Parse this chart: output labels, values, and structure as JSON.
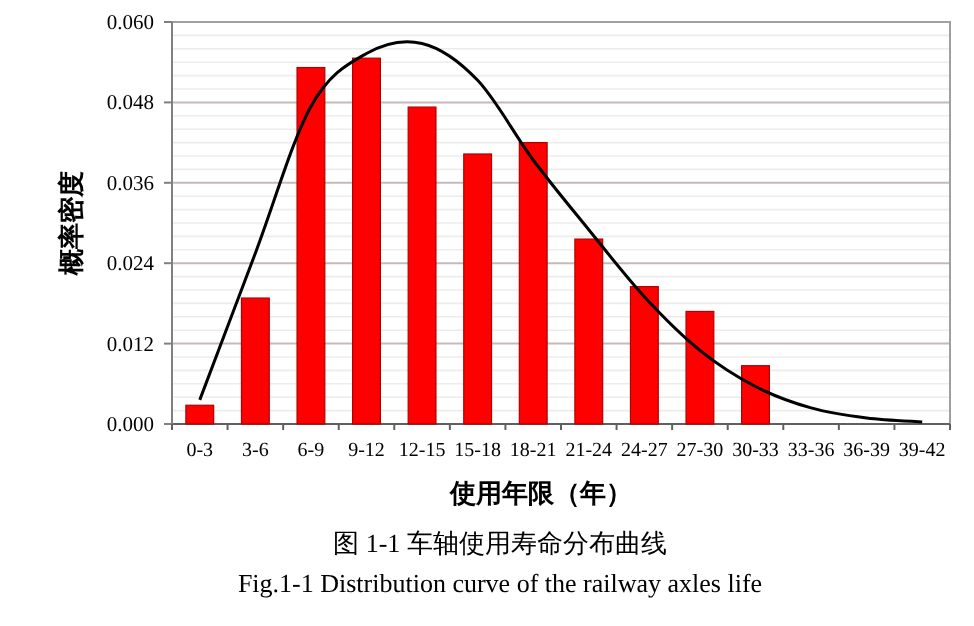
{
  "chart_data": {
    "type": "bar",
    "xlabel": "使用年限（年）",
    "ylabel": "概率密度",
    "categories": [
      "0-3",
      "3-6",
      "6-9",
      "9-12",
      "12-15",
      "15-18",
      "18-21",
      "21-24",
      "24-27",
      "27-30",
      "30-33",
      "33-36",
      "36-39",
      "39-42"
    ],
    "series": [
      {
        "color": "#ff0000",
        "values": [
          0.0028,
          0.0188,
          0.0532,
          0.0546,
          0.0473,
          0.0403,
          0.042,
          0.0276,
          0.0205,
          0.0168,
          0.0087,
          null,
          null,
          null
        ]
      },
      {
        "type": "line",
        "color": "#000000",
        "values": [
          0.0036,
          0.0255,
          0.0474,
          0.0553,
          0.0568,
          0.0513,
          0.0394,
          0.029,
          0.019,
          0.011,
          0.0056,
          0.0024,
          0.0009,
          0.0003
        ]
      }
    ],
    "ylim": [
      0,
      0.06
    ],
    "yticks": [
      {
        "value": 0,
        "label": "0.000"
      },
      {
        "value": 0.012,
        "label": "0.012"
      },
      {
        "value": 0.024,
        "label": "0.024"
      },
      {
        "value": 0.036,
        "label": "0.036"
      },
      {
        "value": 0.048,
        "label": "0.048"
      },
      {
        "value": 0.06,
        "label": "0.060"
      }
    ],
    "grid": "y",
    "marker": "none",
    "line_style": "solid",
    "annotations": [
      "图 1-1 车轴使用寿命分布曲线",
      "Fig.1-1 Distribution curve of the railway axles life"
    ]
  }
}
